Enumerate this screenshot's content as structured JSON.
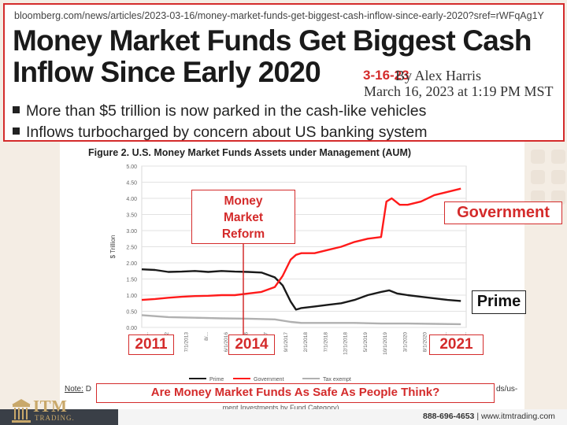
{
  "article": {
    "url": "bloomberg.com/news/articles/2023-03-16/money-market-funds-get-biggest-cash-inflow-since-early-2020?sref=rWFqAg1Y",
    "title_line1": "Money Market Funds Get Biggest Cash",
    "title_line2": "Inflow Since Early 2020",
    "byline": "By Alex Harris",
    "dateline": "March 16, 2023 at 1:19 PM MST",
    "annotation_date": "3-16-23",
    "bullets": [
      "More than $5 trillion is now parked in the cash-like vehicles",
      "Inflows turbocharged by concern about US banking system"
    ]
  },
  "callouts": {
    "money_market_reform": [
      "Money",
      "Market",
      "Reform"
    ],
    "government": "Government",
    "prime": "Prime",
    "year_2011": "2011",
    "year_2014": "2014",
    "year_2021": "2021",
    "question": "Are Money Market Funds As Safe As People Think?"
  },
  "note": {
    "label": "Note:",
    "text_start": "D",
    "text_end": "ds/us-",
    "text_bottom": "...ment Investments by Fund Category)."
  },
  "footer": {
    "brand": "ITM",
    "brand_sub": "TRADING.",
    "phone": "888-696-4653",
    "separator": "|",
    "website": "www.itmtrading.com"
  },
  "colors": {
    "accent_red": "#d42b2b",
    "prime_line": "#1a1a1a",
    "government_line": "#ff1a1a",
    "tax_exempt_line": "#b0b0b0",
    "brand_gold": "#c9a86a"
  },
  "chart_data": {
    "type": "line",
    "title": "Figure 2. U.S. Money Market Funds Assets under Management (AUM)",
    "ylabel": "$ Trillion",
    "xlabel": "",
    "ylim": [
      0,
      5
    ],
    "yticks": [
      "0.00",
      "0.50",
      "1.00",
      "1.50",
      "2.00",
      "2.50",
      "3.00",
      "3.50",
      "4.00",
      "4.50",
      "5.00"
    ],
    "xlim": [
      2011.0,
      2023.2
    ],
    "xticks": [
      "1/...",
      "4/1/2012",
      "7/1/2013",
      "8/...",
      "6/1/2016",
      "11/1/2016",
      "4/1/2017",
      "9/1/2017",
      "2/1/2018",
      "7/1/2018",
      "12/1/2018",
      "5/1/2019",
      "10/1/2019",
      "3/1/2020",
      "8/1/2020",
      "1/...",
      "..."
    ],
    "grid": true,
    "legend": "bottom",
    "series": [
      {
        "name": "Prime",
        "color": "#1a1a1a",
        "x": [
          2011.0,
          2011.5,
          2012.0,
          2012.5,
          2013.0,
          2013.5,
          2014.0,
          2014.5,
          2015.0,
          2015.5,
          2016.0,
          2016.3,
          2016.6,
          2016.8,
          2017.0,
          2017.5,
          2018.0,
          2018.5,
          2019.0,
          2019.5,
          2020.0,
          2020.3,
          2020.6,
          2021.0,
          2021.5,
          2022.0,
          2022.5,
          2023.0
        ],
        "y": [
          1.8,
          1.78,
          1.72,
          1.73,
          1.75,
          1.72,
          1.75,
          1.73,
          1.72,
          1.7,
          1.55,
          1.3,
          0.8,
          0.55,
          0.6,
          0.65,
          0.7,
          0.75,
          0.85,
          1.0,
          1.1,
          1.15,
          1.05,
          1.0,
          0.95,
          0.9,
          0.85,
          0.82
        ]
      },
      {
        "name": "Government",
        "color": "#ff1a1a",
        "x": [
          2011.0,
          2011.5,
          2012.0,
          2012.5,
          2013.0,
          2013.5,
          2014.0,
          2014.5,
          2015.0,
          2015.5,
          2016.0,
          2016.3,
          2016.6,
          2016.8,
          2017.0,
          2017.5,
          2018.0,
          2018.5,
          2019.0,
          2019.5,
          2020.0,
          2020.2,
          2020.4,
          2020.7,
          2021.0,
          2021.5,
          2022.0,
          2022.5,
          2023.0
        ],
        "y": [
          0.85,
          0.88,
          0.92,
          0.95,
          0.97,
          0.98,
          1.0,
          1.0,
          1.05,
          1.1,
          1.25,
          1.6,
          2.1,
          2.25,
          2.3,
          2.3,
          2.4,
          2.5,
          2.65,
          2.75,
          2.8,
          3.9,
          4.0,
          3.8,
          3.8,
          3.9,
          4.1,
          4.2,
          4.3
        ]
      },
      {
        "name": "Tax exempt",
        "color": "#b0b0b0",
        "x": [
          2011.0,
          2012.0,
          2013.0,
          2014.0,
          2015.0,
          2016.0,
          2016.6,
          2017.0,
          2018.0,
          2019.0,
          2020.0,
          2021.0,
          2022.0,
          2023.0
        ],
        "y": [
          0.38,
          0.32,
          0.3,
          0.28,
          0.27,
          0.25,
          0.17,
          0.14,
          0.14,
          0.14,
          0.12,
          0.12,
          0.11,
          0.1
        ]
      }
    ]
  }
}
